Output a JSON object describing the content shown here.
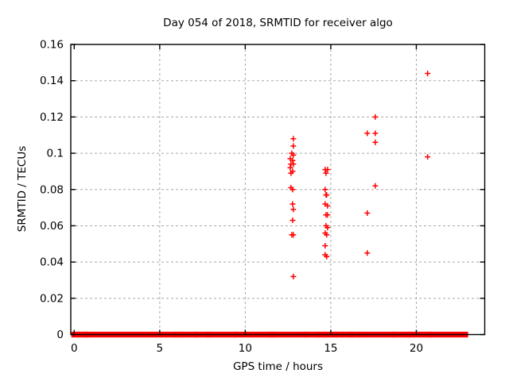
{
  "chart_data": {
    "type": "scatter",
    "title": "Day 054 of 2018, SRMTID for receiver algo",
    "xlabel": "GPS time / hours",
    "ylabel": "SRMTID / TECUs",
    "xlim": [
      -0.2,
      24.0
    ],
    "ylim": [
      0,
      0.16
    ],
    "xticks": [
      0,
      5,
      10,
      15,
      20
    ],
    "xtick_labels": [
      "0",
      "5",
      "10",
      "15",
      "20"
    ],
    "yticks": [
      0,
      0.02,
      0.04,
      0.06,
      0.08,
      0.1,
      0.12,
      0.14,
      0.16
    ],
    "ytick_labels": [
      "0",
      "0.02",
      "0.04",
      "0.06",
      "0.08",
      "0.1",
      "0.12",
      "0.14",
      "0.16"
    ],
    "grid": "dashed",
    "legend": "none",
    "marker": {
      "shape": "plus",
      "color": "#ff0000",
      "size": 7
    },
    "colors": {
      "marker": "#ff0000",
      "grid": "#a8a8a8",
      "border": "#000000",
      "text": "#000000",
      "background": "#ffffff"
    },
    "series": [
      {
        "name": "SRMTID",
        "points": [
          [
            12.81,
            0.108
          ],
          [
            12.81,
            0.104
          ],
          [
            12.72,
            0.1
          ],
          [
            12.81,
            0.099
          ],
          [
            12.63,
            0.097
          ],
          [
            12.77,
            0.096
          ],
          [
            12.67,
            0.094
          ],
          [
            12.81,
            0.094
          ],
          [
            12.63,
            0.092
          ],
          [
            12.77,
            0.09
          ],
          [
            12.67,
            0.089
          ],
          [
            12.67,
            0.081
          ],
          [
            12.77,
            0.08
          ],
          [
            12.77,
            0.072
          ],
          [
            12.81,
            0.069
          ],
          [
            12.77,
            0.063
          ],
          [
            12.72,
            0.055
          ],
          [
            12.81,
            0.055
          ],
          [
            12.81,
            0.032
          ],
          [
            14.67,
            0.091
          ],
          [
            14.81,
            0.091
          ],
          [
            14.72,
            0.089
          ],
          [
            14.67,
            0.08
          ],
          [
            14.72,
            0.077
          ],
          [
            14.76,
            0.077
          ],
          [
            14.67,
            0.072
          ],
          [
            14.81,
            0.071
          ],
          [
            14.72,
            0.066
          ],
          [
            14.81,
            0.066
          ],
          [
            14.72,
            0.06
          ],
          [
            14.81,
            0.059
          ],
          [
            14.67,
            0.056
          ],
          [
            14.76,
            0.055
          ],
          [
            14.67,
            0.049
          ],
          [
            14.67,
            0.044
          ],
          [
            14.76,
            0.043
          ],
          [
            17.6,
            0.12
          ],
          [
            17.13,
            0.111
          ],
          [
            17.6,
            0.111
          ],
          [
            17.6,
            0.106
          ],
          [
            17.6,
            0.082
          ],
          [
            17.13,
            0.067
          ],
          [
            17.13,
            0.045
          ],
          [
            20.66,
            0.144
          ],
          [
            20.66,
            0.098
          ]
        ]
      }
    ],
    "baseline_value": 0,
    "baseline_segments": [
      [
        0.0,
        0.2
      ],
      [
        0.3,
        0.55
      ],
      [
        0.63,
        0.72
      ],
      [
        0.81,
        4.95
      ],
      [
        5.23,
        5.88
      ],
      [
        6.02,
        6.12
      ],
      [
        6.35,
        7.05
      ],
      [
        7.19,
        7.79
      ],
      [
        7.88,
        9.37
      ],
      [
        9.47,
        11.37
      ],
      [
        11.51,
        11.6
      ],
      [
        11.74,
        13.42
      ],
      [
        13.6,
        14.16
      ],
      [
        14.3,
        14.58
      ],
      [
        14.86,
        15.28
      ],
      [
        15.42,
        15.56
      ],
      [
        15.79,
        16.02
      ],
      [
        16.23,
        16.28
      ],
      [
        16.4,
        16.58
      ],
      [
        16.77,
        18.67
      ],
      [
        18.77,
        19.47
      ],
      [
        19.6,
        20.72
      ],
      [
        20.81,
        22.86
      ]
    ]
  }
}
